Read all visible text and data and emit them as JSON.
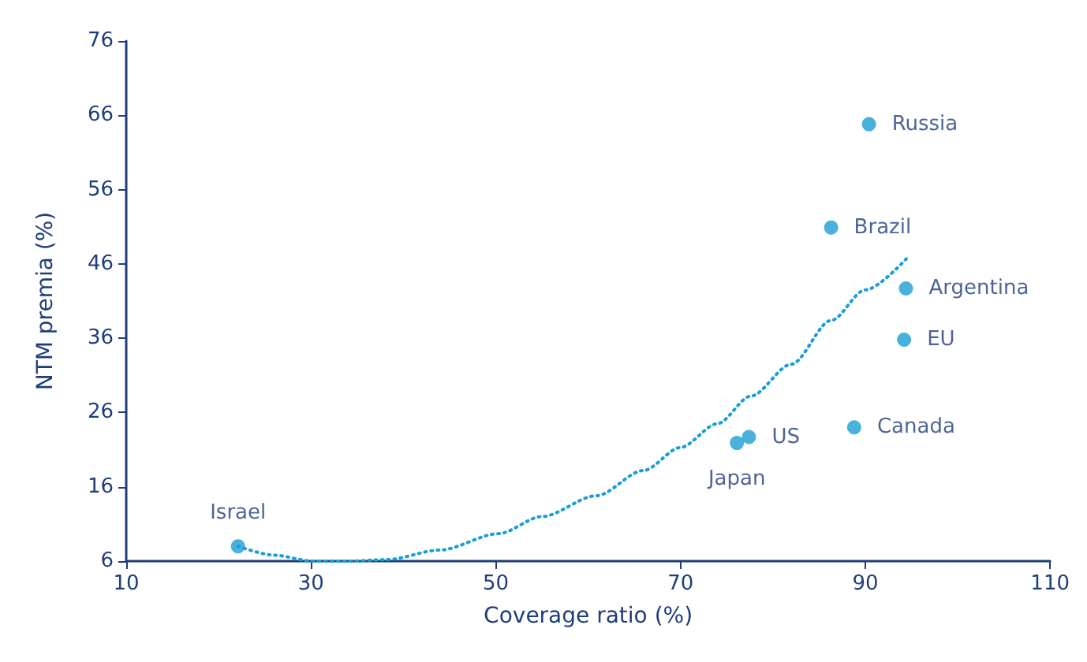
{
  "chart_data": {
    "type": "scatter",
    "xlabel": "Coverage ratio (%)",
    "ylabel": "NTM premia (%)",
    "xlim": [
      10,
      110
    ],
    "xticks": [
      10,
      30,
      50,
      70,
      90,
      110
    ],
    "ylim": [
      6,
      76
    ],
    "yticks": [
      6,
      16,
      26,
      36,
      46,
      56,
      66,
      76
    ],
    "grid": false,
    "marker": "circle",
    "series": [
      {
        "color": "#1a9fd4",
        "x": [
          22.1,
          76.1,
          77.4,
          88.8,
          94.2,
          94.4,
          86.3,
          90.4
        ],
        "values": [
          8.0,
          21.9,
          22.7,
          24.0,
          35.8,
          42.7,
          50.9,
          64.8
        ],
        "value_labels": [
          "Israel",
          "Japan",
          "US",
          "Canada",
          "EU",
          "Argentina",
          "Brazil",
          "Russia"
        ]
      },
      {
        "type": "line",
        "color": "#1a9fd4",
        "line_style": "dotted",
        "marker": "none",
        "x": [
          22.1,
          26,
          30.2,
          34,
          38.2,
          44,
          50.3,
          55,
          60.9,
          66,
          70,
          74,
          77.6,
          82,
          86.3,
          90,
          94.6
        ],
        "values": [
          8.0,
          6.8,
          6.0,
          6.0,
          6.2,
          7.5,
          9.7,
          12.0,
          14.8,
          18.2,
          21.3,
          24.5,
          28.2,
          32.5,
          38.4,
          42.5,
          46.9
        ]
      }
    ]
  }
}
